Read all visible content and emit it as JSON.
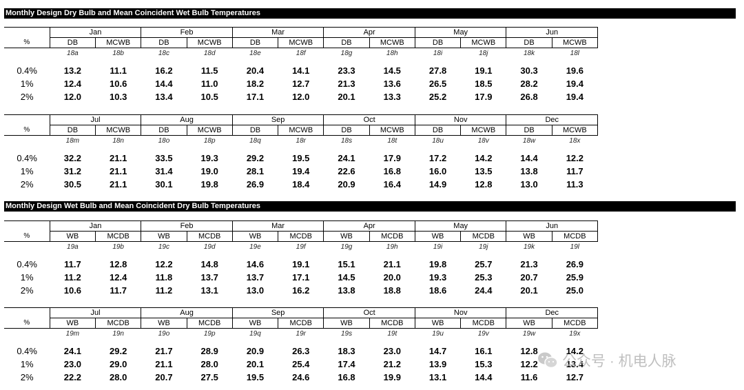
{
  "sections": [
    {
      "title": "Monthly Design Dry Bulb and Mean Coincident Wet Bulb Temperatures",
      "col_labels": [
        "DB",
        "MCWB"
      ],
      "pct_label": "%",
      "halves": [
        {
          "months": [
            "Jan",
            "Feb",
            "Mar",
            "Apr",
            "May",
            "Jun"
          ],
          "codes": [
            "18a",
            "18b",
            "18c",
            "18d",
            "18e",
            "18f",
            "18g",
            "18h",
            "18i",
            "18j",
            "18k",
            "18l"
          ],
          "rows": [
            {
              "pct": "0.4%",
              "values": [
                "13.2",
                "11.1",
                "16.2",
                "11.5",
                "20.4",
                "14.1",
                "23.3",
                "14.5",
                "27.8",
                "19.1",
                "30.3",
                "19.6"
              ]
            },
            {
              "pct": "1%",
              "values": [
                "12.4",
                "10.6",
                "14.4",
                "11.0",
                "18.2",
                "12.7",
                "21.3",
                "13.6",
                "26.5",
                "18.5",
                "28.2",
                "19.4"
              ]
            },
            {
              "pct": "2%",
              "values": [
                "12.0",
                "10.3",
                "13.4",
                "10.5",
                "17.1",
                "12.0",
                "20.1",
                "13.3",
                "25.2",
                "17.9",
                "26.8",
                "19.4"
              ]
            }
          ]
        },
        {
          "months": [
            "Jul",
            "Aug",
            "Sep",
            "Oct",
            "Nov",
            "Dec"
          ],
          "codes": [
            "18m",
            "18n",
            "18o",
            "18p",
            "18q",
            "18r",
            "18s",
            "18t",
            "18u",
            "18v",
            "18w",
            "18x"
          ],
          "rows": [
            {
              "pct": "0.4%",
              "values": [
                "32.2",
                "21.1",
                "33.5",
                "19.3",
                "29.2",
                "19.5",
                "24.1",
                "17.9",
                "17.2",
                "14.2",
                "14.4",
                "12.2"
              ]
            },
            {
              "pct": "1%",
              "values": [
                "31.2",
                "21.1",
                "31.4",
                "19.0",
                "28.1",
                "19.4",
                "22.6",
                "16.8",
                "16.0",
                "13.5",
                "13.8",
                "11.7"
              ]
            },
            {
              "pct": "2%",
              "values": [
                "30.5",
                "21.1",
                "30.1",
                "19.8",
                "26.9",
                "18.4",
                "20.9",
                "16.4",
                "14.9",
                "12.8",
                "13.0",
                "11.3"
              ]
            }
          ]
        }
      ]
    },
    {
      "title": "Monthly Design Wet Bulb and Mean Coincident Dry Bulb Temperatures",
      "col_labels": [
        "WB",
        "MCDB"
      ],
      "pct_label": "%",
      "halves": [
        {
          "months": [
            "Jan",
            "Feb",
            "Mar",
            "Apr",
            "May",
            "Jun"
          ],
          "codes": [
            "19a",
            "19b",
            "19c",
            "19d",
            "19e",
            "19f",
            "19g",
            "19h",
            "19i",
            "19j",
            "19k",
            "19l"
          ],
          "rows": [
            {
              "pct": "0.4%",
              "values": [
                "11.7",
                "12.8",
                "12.2",
                "14.8",
                "14.6",
                "19.1",
                "15.1",
                "21.1",
                "19.8",
                "25.7",
                "21.3",
                "26.9"
              ]
            },
            {
              "pct": "1%",
              "values": [
                "11.2",
                "12.4",
                "11.8",
                "13.7",
                "13.7",
                "17.1",
                "14.5",
                "20.0",
                "19.3",
                "25.3",
                "20.7",
                "25.9"
              ]
            },
            {
              "pct": "2%",
              "values": [
                "10.6",
                "11.7",
                "11.2",
                "13.1",
                "13.0",
                "16.2",
                "13.8",
                "18.8",
                "18.6",
                "24.4",
                "20.1",
                "25.0"
              ]
            }
          ]
        },
        {
          "months": [
            "Jul",
            "Aug",
            "Sep",
            "Oct",
            "Nov",
            "Dec"
          ],
          "codes": [
            "19m",
            "19n",
            "19o",
            "19p",
            "19q",
            "19r",
            "19s",
            "19t",
            "19u",
            "19v",
            "19w",
            "19x"
          ],
          "rows": [
            {
              "pct": "0.4%",
              "values": [
                "24.1",
                "29.2",
                "21.7",
                "28.9",
                "20.9",
                "26.3",
                "18.3",
                "23.0",
                "14.7",
                "16.1",
                "12.8",
                "14.2"
              ]
            },
            {
              "pct": "1%",
              "values": [
                "23.0",
                "29.0",
                "21.1",
                "28.0",
                "20.1",
                "25.4",
                "17.4",
                "21.2",
                "13.9",
                "15.3",
                "12.2",
                "13.4"
              ]
            },
            {
              "pct": "2%",
              "values": [
                "22.2",
                "28.0",
                "20.7",
                "27.5",
                "19.5",
                "24.6",
                "16.8",
                "19.9",
                "13.1",
                "14.4",
                "11.6",
                "12.7"
              ]
            }
          ]
        }
      ]
    }
  ],
  "watermark": {
    "text": "公众号 · 机电人脉",
    "icon": "wechat-logo-icon"
  }
}
